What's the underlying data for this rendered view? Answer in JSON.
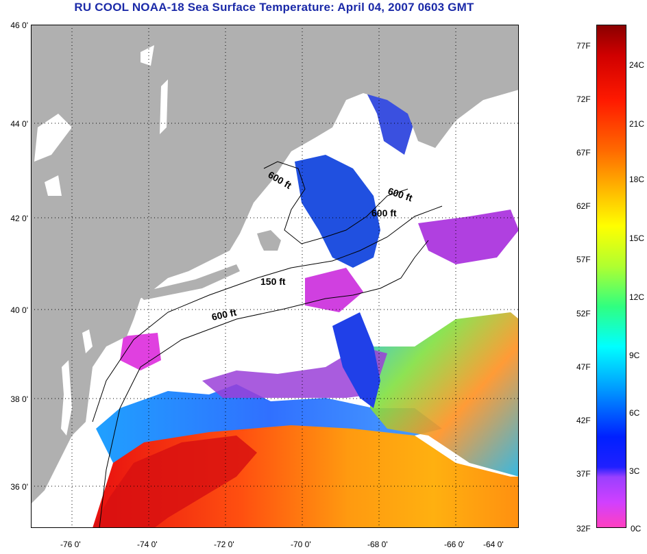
{
  "title": "RU COOL  NOAA-18  Sea Surface Temperature:  April 04, 2007 0603 GMT",
  "latitudes": [
    "46 0'",
    "44 0'",
    "42 0'",
    "40 0'",
    "38 0'",
    "36 0'"
  ],
  "longitudes": [
    "-76 0'",
    "-74 0'",
    "-72 0'",
    "-70 0'",
    "-68 0'",
    "-66 0'",
    "-64 0'"
  ],
  "contour_labels": [
    "600 ft",
    "600 ft",
    "600 ft",
    "150 ft",
    "600 ft"
  ],
  "colorbar": {
    "fahrenheit": [
      "77F",
      "72F",
      "67F",
      "62F",
      "57F",
      "52F",
      "47F",
      "42F",
      "37F",
      "32F"
    ],
    "celsius": [
      "24C",
      "21C",
      "18C",
      "15C",
      "12C",
      "9C",
      "6C",
      "3C",
      "0C"
    ]
  },
  "colors": {
    "title": "#1b2aa8",
    "land": "#b0b0b0",
    "cloud": "#ffffff"
  }
}
